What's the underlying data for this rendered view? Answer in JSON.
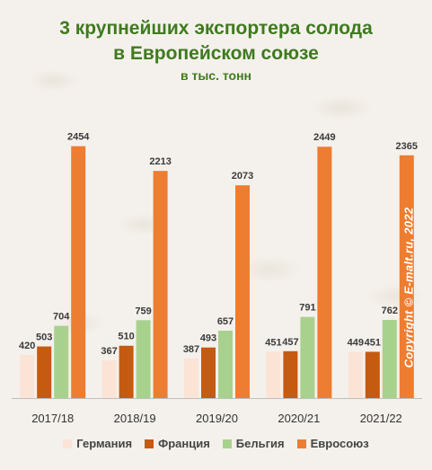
{
  "title": "3 крупнейших экспортера солода\nв Европейском союзе",
  "subtitle": "в тыс. тонн",
  "watermark": "Copyright © E-malt.ru, 2022",
  "colors": {
    "title": "#3f7a1e",
    "series": [
      "#fbe3d6",
      "#c55a11",
      "#a9d18e",
      "#ed7d31"
    ],
    "label": "#3a3a3a"
  },
  "chart_data": {
    "type": "bar",
    "categories": [
      "2017/18",
      "2018/19",
      "2019/20",
      "2020/21",
      "2021/22"
    ],
    "series": [
      {
        "name": "Германия",
        "values": [
          420,
          367,
          387,
          451,
          449
        ]
      },
      {
        "name": "Франция",
        "values": [
          503,
          510,
          493,
          457,
          451
        ]
      },
      {
        "name": "Бельгия",
        "values": [
          704,
          759,
          657,
          791,
          762
        ]
      },
      {
        "name": "Евросоюз",
        "values": [
          2454,
          2213,
          2073,
          2449,
          2365
        ]
      }
    ],
    "ylim": [
      0,
      2600
    ],
    "grid": false,
    "legend_position": "bottom"
  }
}
